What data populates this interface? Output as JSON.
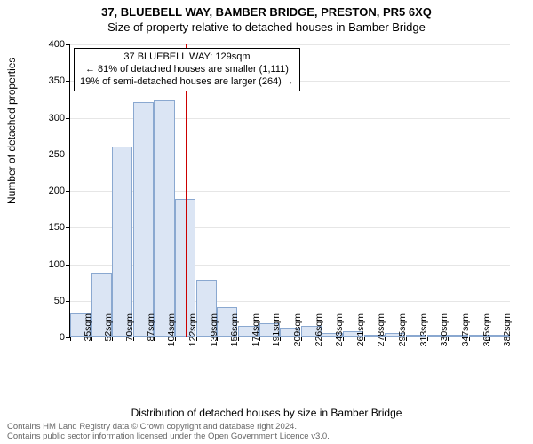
{
  "title_line1": "37, BLUEBELL WAY, BAMBER BRIDGE, PRESTON, PR5 6XQ",
  "title_line2": "Size of property relative to detached houses in Bamber Bridge",
  "ylabel": "Number of detached properties",
  "xlabel": "Distribution of detached houses by size in Bamber Bridge",
  "footer_line1": "Contains HM Land Registry data © Crown copyright and database right 2024.",
  "footer_line2": "Contains public sector information licensed under the Open Government Licence v3.0.",
  "chart": {
    "type": "histogram",
    "ylim": [
      0,
      400
    ],
    "yticks": [
      0,
      50,
      100,
      150,
      200,
      250,
      300,
      350,
      400
    ],
    "xticks": [
      "35sqm",
      "52sqm",
      "70sqm",
      "87sqm",
      "104sqm",
      "122sqm",
      "139sqm",
      "156sqm",
      "174sqm",
      "191sqm",
      "209sqm",
      "226sqm",
      "243sqm",
      "261sqm",
      "278sqm",
      "295sqm",
      "313sqm",
      "330sqm",
      "347sqm",
      "365sqm",
      "382sqm"
    ],
    "bars": [
      32,
      87,
      260,
      320,
      322,
      188,
      78,
      40,
      14,
      18,
      12,
      14,
      5,
      7,
      3,
      5,
      2,
      3,
      2,
      3,
      2
    ],
    "bar_fill": "#dbe5f4",
    "bar_stroke": "#8aa8d0",
    "grid_color": "#e6e6e6",
    "background_color": "#ffffff",
    "ref_line_bin_index": 5,
    "ref_line_color": "#cc0000",
    "title_fontsize": 13,
    "label_fontsize": 12,
    "tick_fontsize": 11
  },
  "annotation": {
    "line1": "37 BLUEBELL WAY: 129sqm",
    "line2": "← 81% of detached houses are smaller (1,111)",
    "line3": "19% of semi-detached houses are larger (264) →"
  }
}
